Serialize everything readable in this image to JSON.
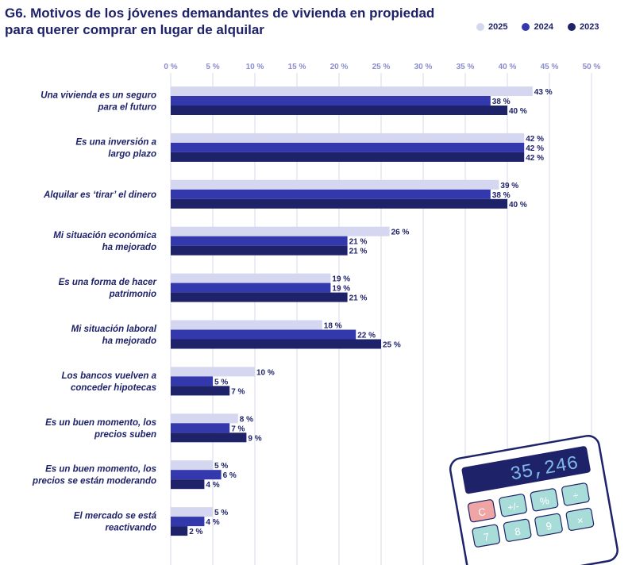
{
  "title": {
    "line1": "G6. Motivos de los jóvenes demandantes de vivienda en propiedad",
    "line2": "para querer comprar en lugar de alquilar"
  },
  "colors": {
    "2025": "#d5d7f0",
    "2024": "#3338ad",
    "2023": "#1e2269",
    "grid": "#d9dbe9",
    "text": "#1e2269",
    "tick": "#8a8ccc"
  },
  "chart_data": {
    "type": "bar",
    "orientation": "horizontal",
    "title": "G6. Motivos de los jóvenes demandantes de vivienda en propiedad para querer comprar en lugar de alquilar",
    "xlim": [
      0,
      50
    ],
    "ticks": [
      0,
      5,
      10,
      15,
      20,
      25,
      30,
      35,
      40,
      45,
      50
    ],
    "tick_labels": [
      "0 %",
      "5 %",
      "10 %",
      "15 %",
      "20 %",
      "25 %",
      "30 %",
      "35 %",
      "40 %",
      "45 %",
      "50 %"
    ],
    "legend_position": "top-right",
    "categories": [
      [
        "Una vivienda es un seguro",
        "para el futuro"
      ],
      [
        "Es una inversión a",
        "largo plazo"
      ],
      [
        "Alquilar es ‘tirar’ el dinero"
      ],
      [
        "Mi situación económica",
        "ha mejorado"
      ],
      [
        "Es una forma de hacer",
        "patrimonio"
      ],
      [
        "Mi situación laboral",
        "ha mejorado"
      ],
      [
        "Los bancos vuelven a",
        "conceder hipotecas"
      ],
      [
        "Es un buen momento, los",
        "precios suben"
      ],
      [
        "Es un buen momento, los",
        "precios se están moderando"
      ],
      [
        "El mercado se está",
        "reactivando"
      ]
    ],
    "series": [
      {
        "name": "2025",
        "values": [
          43,
          42,
          39,
          26,
          19,
          18,
          10,
          8,
          5,
          5
        ]
      },
      {
        "name": "2024",
        "values": [
          38,
          42,
          38,
          21,
          19,
          22,
          5,
          7,
          6,
          4
        ]
      },
      {
        "name": "2023",
        "values": [
          40,
          42,
          40,
          21,
          21,
          25,
          7,
          9,
          4,
          2
        ]
      }
    ]
  }
}
